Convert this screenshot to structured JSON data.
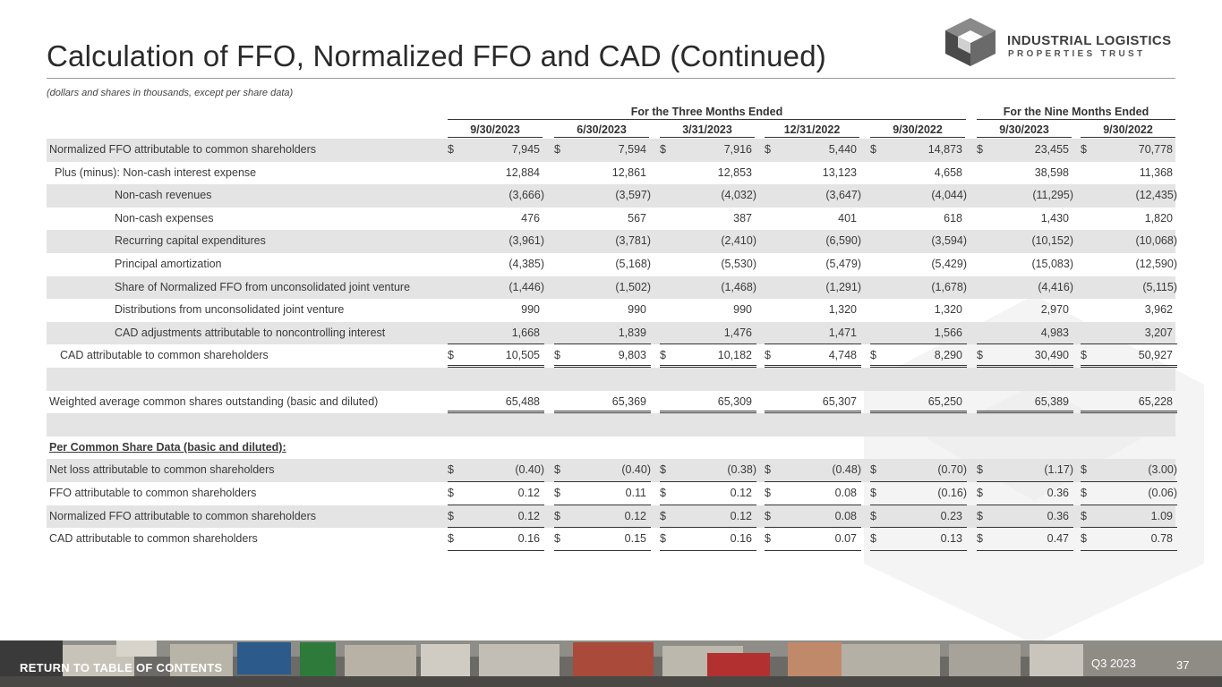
{
  "header": {
    "title": "Calculation of FFO, Normalized FFO and CAD (Continued)",
    "subtitle": "(dollars and shares in thousands, except per share data)"
  },
  "logo": {
    "line1": "INDUSTRIAL LOGISTICS",
    "line2": "PROPERTIES TRUST",
    "icon": "hexagon-cube-icon"
  },
  "table": {
    "group_headers": [
      "For the Three Months Ended",
      "For the Nine Months Ended"
    ],
    "columns": [
      "9/30/2023",
      "6/30/2023",
      "3/31/2023",
      "12/31/2022",
      "9/30/2022",
      "9/30/2023",
      "9/30/2022"
    ],
    "rows": [
      {
        "label": "Normalized FFO attributable to common shareholders",
        "dollar": true,
        "values": [
          "7,945",
          "7,594",
          "7,916",
          "5,440",
          "14,873",
          "23,455",
          "70,778"
        ]
      },
      {
        "label": "Plus (minus): Non-cash interest expense",
        "dollar": false,
        "values": [
          "12,884",
          "12,861",
          "12,853",
          "13,123",
          "4,658",
          "38,598",
          "11,368"
        ]
      },
      {
        "label": "Non-cash revenues",
        "dollar": false,
        "values": [
          "(3,666)",
          "(3,597)",
          "(4,032)",
          "(3,647)",
          "(4,044)",
          "(11,295)",
          "(12,435)"
        ]
      },
      {
        "label": "Non-cash expenses",
        "dollar": false,
        "values": [
          "476",
          "567",
          "387",
          "401",
          "618",
          "1,430",
          "1,820"
        ]
      },
      {
        "label": "Recurring capital expenditures",
        "dollar": false,
        "values": [
          "(3,961)",
          "(3,781)",
          "(2,410)",
          "(6,590)",
          "(3,594)",
          "(10,152)",
          "(10,068)"
        ]
      },
      {
        "label": "Principal amortization",
        "dollar": false,
        "values": [
          "(4,385)",
          "(5,168)",
          "(5,530)",
          "(5,479)",
          "(5,429)",
          "(15,083)",
          "(12,590)"
        ]
      },
      {
        "label": "Share of Normalized FFO from unconsolidated joint venture",
        "dollar": false,
        "values": [
          "(1,446)",
          "(1,502)",
          "(1,468)",
          "(1,291)",
          "(1,678)",
          "(4,416)",
          "(5,115)"
        ]
      },
      {
        "label": "Distributions from unconsolidated joint venture",
        "dollar": false,
        "values": [
          "990",
          "990",
          "990",
          "1,320",
          "1,320",
          "2,970",
          "3,962"
        ]
      },
      {
        "label": "CAD adjustments attributable to noncontrolling interest",
        "dollar": false,
        "values": [
          "1,668",
          "1,839",
          "1,476",
          "1,471",
          "1,566",
          "4,983",
          "3,207"
        ]
      },
      {
        "label": "CAD attributable to common shareholders",
        "dollar": true,
        "values": [
          "10,505",
          "9,803",
          "10,182",
          "4,748",
          "8,290",
          "30,490",
          "50,927"
        ]
      },
      {
        "label": "",
        "dollar": false,
        "values": []
      },
      {
        "label": "Weighted average common shares outstanding (basic and diluted)",
        "dollar": false,
        "values": [
          "65,488",
          "65,369",
          "65,309",
          "65,307",
          "65,250",
          "65,389",
          "65,228"
        ]
      },
      {
        "label": "",
        "dollar": false,
        "values": []
      },
      {
        "label": "Per Common Share Data (basic and diluted):",
        "dollar": false,
        "values": []
      },
      {
        "label": "Net loss attributable to common shareholders",
        "dollar": true,
        "values": [
          "(0.40)",
          "(0.40)",
          "(0.38)",
          "(0.48)",
          "(0.70)",
          "(1.17)",
          "(3.00)"
        ]
      },
      {
        "label": "FFO attributable to common shareholders",
        "dollar": true,
        "values": [
          "0.12",
          "0.11",
          "0.12",
          "0.08",
          "(0.16)",
          "0.36",
          "(0.06)"
        ]
      },
      {
        "label": "Normalized FFO attributable to common shareholders",
        "dollar": true,
        "values": [
          "0.12",
          "0.12",
          "0.12",
          "0.08",
          "0.23",
          "0.36",
          "1.09"
        ]
      },
      {
        "label": "CAD attributable to common shareholders",
        "dollar": true,
        "values": [
          "0.16",
          "0.15",
          "0.16",
          "0.07",
          "0.13",
          "0.47",
          "0.78"
        ]
      }
    ]
  },
  "footer": {
    "toc_link": "RETURN TO TABLE OF CONTENTS",
    "quarter": "Q3 2023",
    "page": "37"
  },
  "colors": {
    "shade": "#e4e4e4",
    "text": "#3a3a3a",
    "logo_dark": "#3e3e3e"
  }
}
